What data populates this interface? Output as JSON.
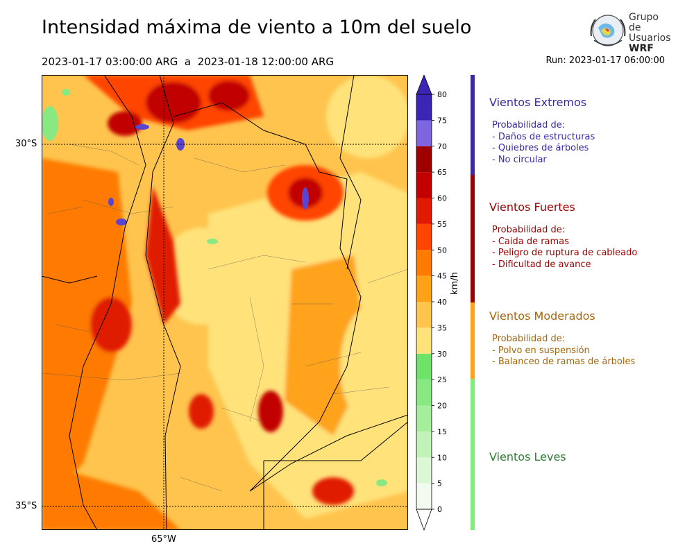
{
  "header": {
    "title": "Intensidad máxima de viento a 10m del suelo",
    "period": "2023-01-17 03:00:00 ARG  a  2023-01-18 12:00:00 ARG",
    "run": "Run: 2023-01-17 06:00:00"
  },
  "logo": {
    "line1": "Grupo de",
    "line2": "Usuarios",
    "line3": "WRF"
  },
  "map": {
    "lat_labels": [
      "30°S",
      "35°S"
    ],
    "lon_labels": [
      "65°W"
    ]
  },
  "colorbar": {
    "unit": "km/h",
    "ticks": [
      "0",
      "5",
      "10",
      "15",
      "20",
      "25",
      "30",
      "35",
      "40",
      "45",
      "50",
      "55",
      "60",
      "65",
      "70",
      "75",
      "80"
    ],
    "colors": [
      "#f3fbf1",
      "#dbf7d6",
      "#c1f2b8",
      "#a5ee9c",
      "#88e881",
      "#6fe26a",
      "#ffe27a",
      "#ffc44d",
      "#ffa21a",
      "#ff7a00",
      "#ff4500",
      "#e01a00",
      "#c10000",
      "#9e0000",
      "#7e66e0",
      "#5a44d0",
      "#3b25b5"
    ],
    "lower_cap_color": "#ffffff",
    "upper_cap_color": "#3b25b5"
  },
  "legend": [
    {
      "name": "Vientos Extremos",
      "color": "#3a28a8",
      "bar_color": "#3a28a8",
      "lines": [
        "Probabilidad de:",
        "- Daños de estructuras",
        "- Quiebres de árboles",
        "- No circular"
      ]
    },
    {
      "name": "Vientos Fuertes",
      "color": "#9e0000",
      "bar_color": "#9e0000",
      "lines": [
        "Probabilidad de:",
        "- Caida de ramas",
        "- Peligro de ruptura de cableado",
        "- Dificultad de avance"
      ]
    },
    {
      "name": "Vientos Moderados",
      "color": "#a8650a",
      "bar_color": "#ffa21a",
      "lines": [
        "Probabilidad de:",
        "- Polvo en suspensión",
        "- Balanceo de ramas de árboles"
      ]
    },
    {
      "name": "Vientos Leves",
      "color": "#2e7d32",
      "bar_color": "#7ef07a",
      "lines": []
    }
  ]
}
